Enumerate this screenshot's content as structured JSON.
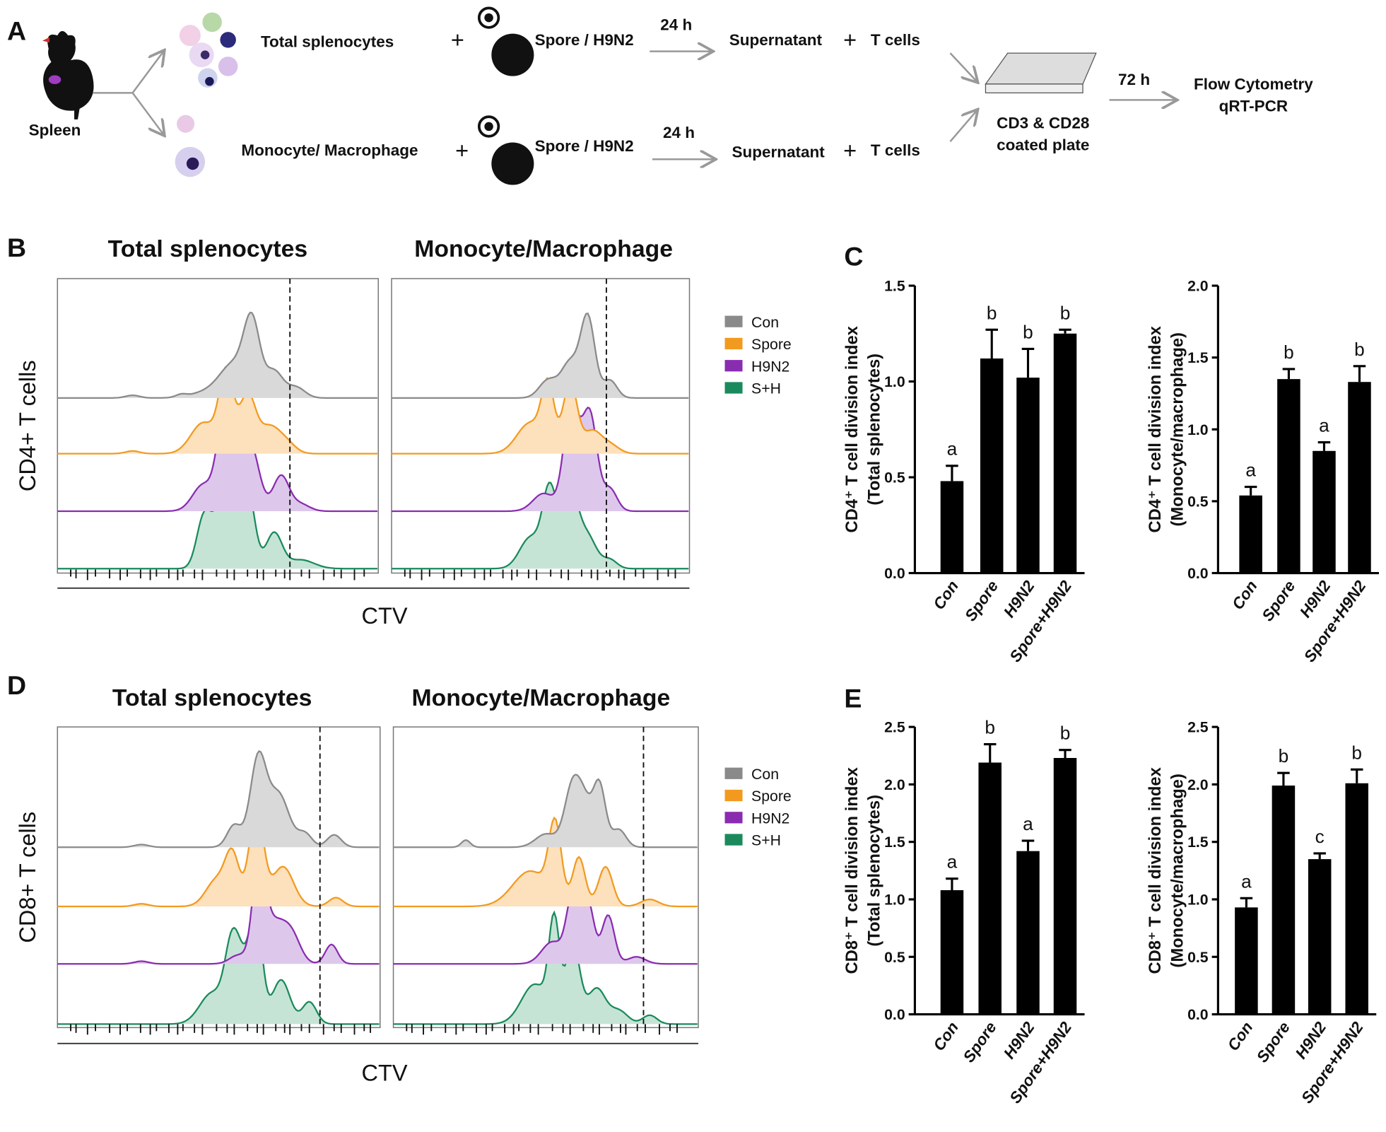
{
  "panel_labels": [
    "A",
    "B",
    "C",
    "D",
    "E"
  ],
  "schematic": {
    "source": "Spleen",
    "branches": [
      {
        "cells": "Total splenocytes",
        "plus1": "+",
        "stimulus": "Spore / H9N2",
        "time": "24 h",
        "product": "Supernatant",
        "plus2": "+",
        "responders": "T cells"
      },
      {
        "cells": "Monocyte/ Macrophage",
        "plus1": "+",
        "stimulus": "Spore / H9N2",
        "time": "24 h",
        "product": "Supernatant",
        "plus2": "+",
        "responders": "T cells"
      }
    ],
    "plate": [
      "CD3 & CD28",
      "coated plate"
    ],
    "time": "72 h",
    "readouts": [
      "Flow Cytometry",
      "qRT-PCR"
    ]
  },
  "histograms": [
    {
      "row_label": "CD4+ T cells",
      "x_label": "CTV",
      "panels": [
        "Total splenocytes",
        "Monocyte/Macrophage"
      ]
    },
    {
      "row_label": "CD8+ T cells",
      "x_label": "CTV",
      "panels": [
        "Total splenocytes",
        "Monocyte/Macrophage"
      ]
    }
  ],
  "legend": [
    {
      "name": "Con",
      "color": "#8a8a8a"
    },
    {
      "name": "Spore",
      "color": "#f29a1f"
    },
    {
      "name": "H9N2",
      "color": "#8a2cb0"
    },
    {
      "name": "S+H",
      "color": "#1a8a5c"
    }
  ],
  "chart_data": [
    {
      "type": "bar",
      "ylabel": [
        "CD4⁺ T cell division index",
        "(Total splenocytes)"
      ],
      "categories": [
        "Con",
        "Spore",
        "H9N2",
        "Spore+H9N2"
      ],
      "values": [
        0.48,
        1.12,
        1.02,
        1.25
      ],
      "errors": [
        0.08,
        0.15,
        0.15,
        0.02
      ],
      "annotations": [
        "a",
        "b",
        "b",
        "b"
      ],
      "color": "#000000",
      "ylim": [
        0,
        1.5
      ],
      "yticks": [
        {
          "value": 0,
          "label": "0.0"
        },
        0.5,
        {
          "value": 1,
          "label": "1.0"
        },
        1.5
      ]
    },
    {
      "type": "bar",
      "ylabel": [
        "CD4⁺ T cell division index",
        "(Monocyte/macrophage)"
      ],
      "categories": [
        "Con",
        "Spore",
        "H9N2",
        "Spore+H9N2"
      ],
      "values": [
        0.54,
        1.35,
        0.85,
        1.33
      ],
      "errors": [
        0.06,
        0.07,
        0.06,
        0.11
      ],
      "annotations": [
        "a",
        "b",
        "a",
        "b"
      ],
      "color": "#000000",
      "ylim": [
        0,
        2
      ],
      "yticks": [
        {
          "value": 0,
          "label": "0.0"
        },
        0.5,
        {
          "value": 1,
          "label": "1.0"
        },
        1.5,
        {
          "value": 2,
          "label": "2.0"
        }
      ]
    },
    {
      "type": "bar",
      "ylabel": [
        "CD8⁺ T cell division index",
        "(Total splenocytes)"
      ],
      "categories": [
        "Con",
        "Spore",
        "H9N2",
        "Spore+H9N2"
      ],
      "values": [
        1.08,
        2.19,
        1.42,
        2.23
      ],
      "errors": [
        0.1,
        0.16,
        0.09,
        0.07
      ],
      "annotations": [
        "a",
        "b",
        "a",
        "b"
      ],
      "color": "#000000",
      "ylim": [
        0,
        2.5
      ],
      "yticks": [
        {
          "value": 0,
          "label": "0.0"
        },
        0.5,
        {
          "value": 1,
          "label": "1.0"
        },
        1.5,
        {
          "value": 2,
          "label": "2.0"
        },
        2.5
      ]
    },
    {
      "type": "bar",
      "ylabel": [
        "CD8⁺ T cell division index",
        "(Monocyte/macrophage)"
      ],
      "categories": [
        "Con",
        "Spore",
        "H9N2",
        "Spore+H9N2"
      ],
      "values": [
        0.93,
        1.99,
        1.35,
        2.01
      ],
      "errors": [
        0.08,
        0.11,
        0.05,
        0.12
      ],
      "annotations": [
        "a",
        "b",
        "c",
        "b"
      ],
      "color": "#000000",
      "ylim": [
        0,
        2.5
      ],
      "yticks": [
        {
          "value": 0,
          "label": "0.0"
        },
        0.5,
        {
          "value": 1,
          "label": "1.0"
        },
        1.5,
        {
          "value": 2,
          "label": "2.0"
        },
        2.5
      ]
    }
  ]
}
